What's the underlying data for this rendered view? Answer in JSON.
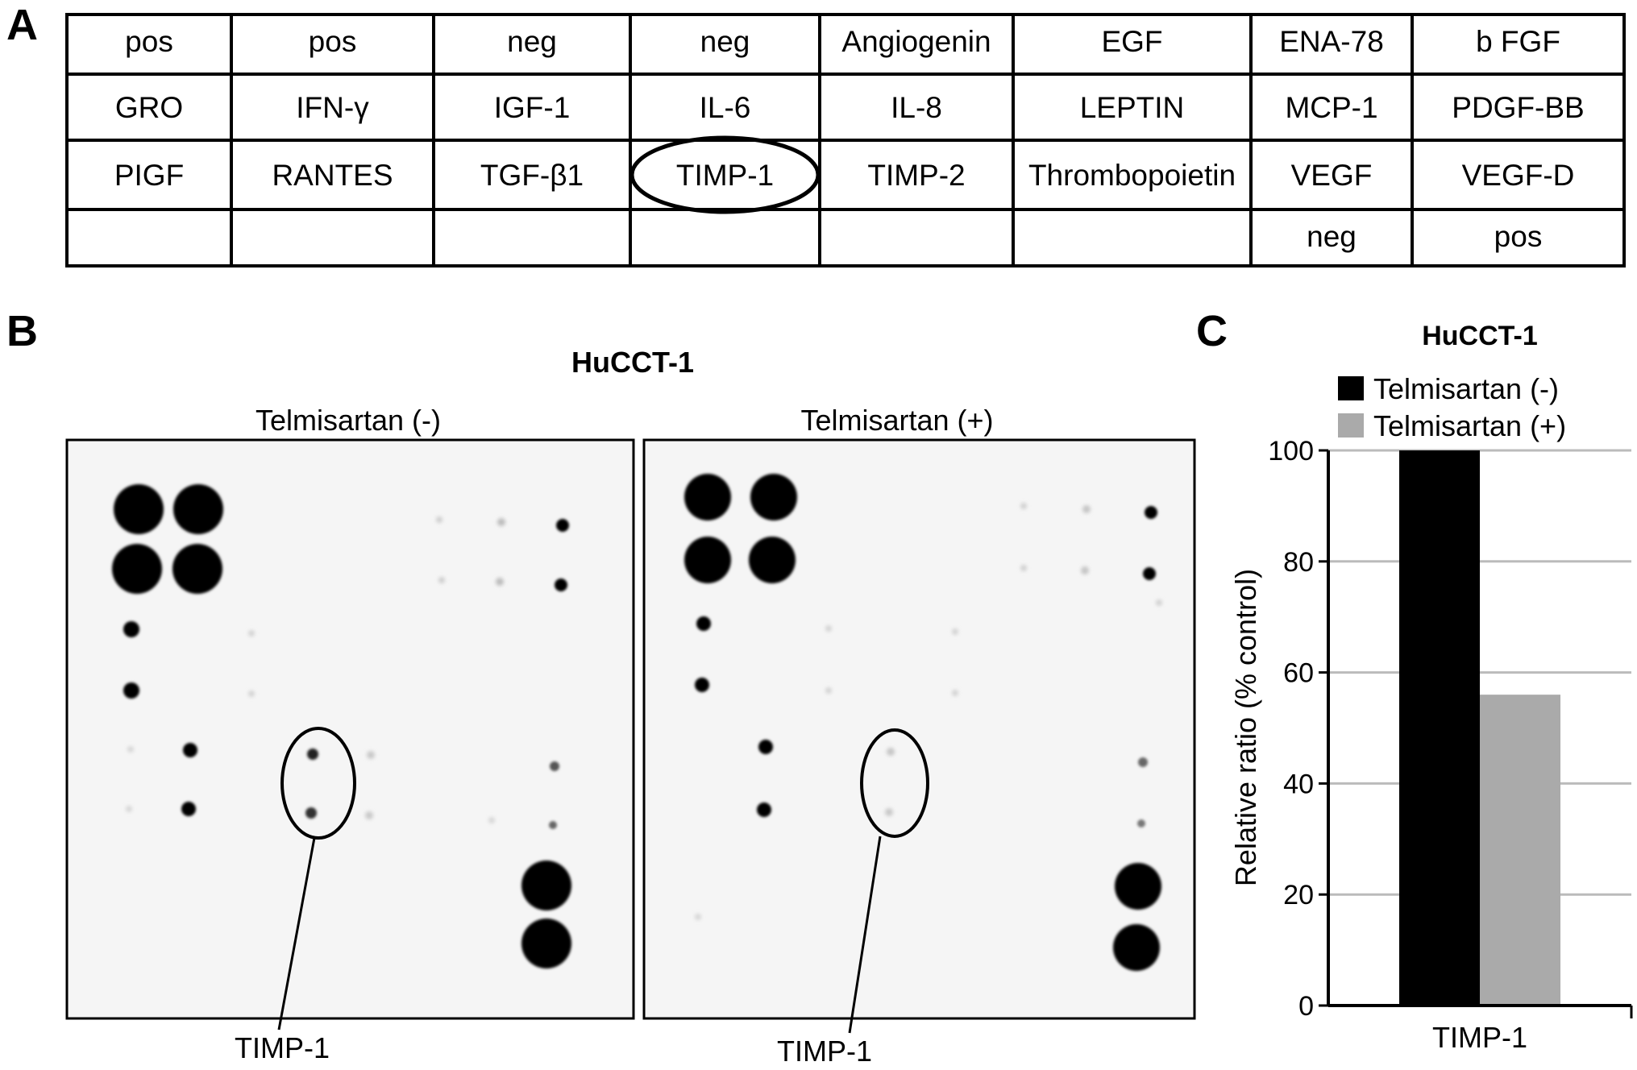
{
  "panels": {
    "a": "A",
    "b": "B",
    "c": "C"
  },
  "array_table": {
    "rows": [
      [
        "pos",
        "pos",
        "neg",
        "neg",
        "Angiogenin",
        "EGF",
        "ENA-78",
        "b FGF"
      ],
      [
        "GRO",
        "IFN-γ",
        "IGF-1",
        "IL-6",
        "IL-8",
        "LEPTIN",
        "MCP-1",
        "PDGF-BB"
      ],
      [
        "PIGF",
        "RANTES",
        "TGF-β1",
        "TIMP-1",
        "TIMP-2",
        "Thrombopoietin",
        "VEGF",
        "VEGF-D"
      ],
      [
        "",
        "",
        "",
        "",
        "",
        "",
        "neg",
        "pos"
      ]
    ],
    "highlighted": "TIMP-1"
  },
  "blot": {
    "title": "HuCCT-1",
    "left_label": "Telmisartan (-)",
    "right_label": "Telmisartan (+)",
    "callout_left": "TIMP-1",
    "callout_right": "TIMP-1"
  },
  "colors": {
    "bar_minus": "#000000",
    "bar_plus": "#aaaaaa",
    "grid": "#bbbbbb",
    "membrane_bg": "#f5f5f5"
  },
  "chart_data": {
    "type": "bar",
    "title": "HuCCT-1",
    "categories": [
      "TIMP-1"
    ],
    "series": [
      {
        "name": "Telmisartan (-)",
        "values": [
          100
        ]
      },
      {
        "name": "Telmisartan (+)",
        "values": [
          56
        ]
      }
    ],
    "xlabel": "",
    "ylabel": "Relative ratio (% control)",
    "ylim": [
      0,
      100
    ],
    "yticks": [
      0,
      20,
      40,
      60,
      80,
      100
    ],
    "grid": true,
    "legend": "top"
  }
}
